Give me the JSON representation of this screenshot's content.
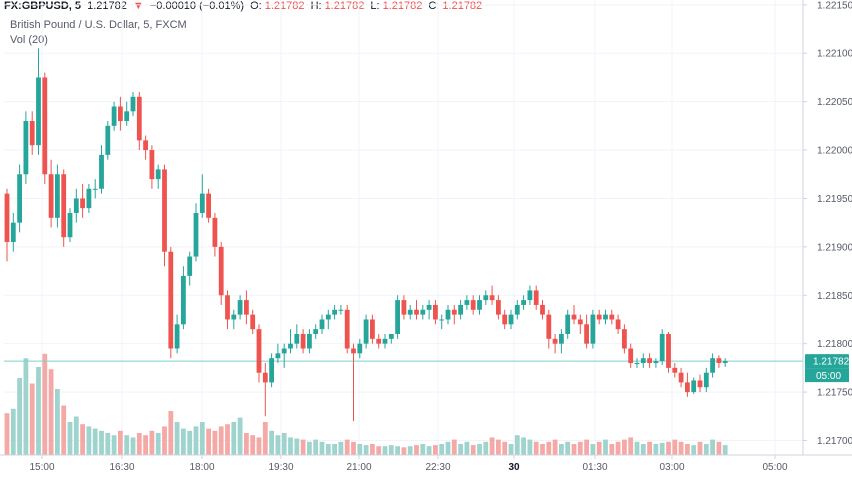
{
  "header": {
    "symbol": "FX:GBPUSD, 5",
    "last": "1.21782",
    "change_arrow": "▼",
    "change": "−0.00010 (−0.01%)",
    "o_label": "O:",
    "o_val": "1.21782",
    "h_label": "H:",
    "h_val": "1.21782",
    "l_label": "L:",
    "l_val": "1.21782",
    "c_label": "C:",
    "c_val": "1.21782",
    "title": "British Pound / U.S. Dollar, 5, FXCM",
    "volume_label": "Vol (20)"
  },
  "colors": {
    "up": "#26a69a",
    "down": "#ef5350",
    "vol_up": "#9fd4ce",
    "vol_down": "#f5a9a7",
    "grid": "#f0f3fa",
    "price_line": "#7fd1c8",
    "axis_text": "#555a66",
    "price_label_bg": "#26a69a"
  },
  "price_axis": {
    "ticks": [
      "1.22150",
      "1.22100",
      "1.22050",
      "1.22000",
      "1.21950",
      "1.21900",
      "1.21850",
      "1.21800",
      "1.21750",
      "1.21700"
    ],
    "tick_values": [
      1.2215,
      1.221,
      1.2205,
      1.22,
      1.2195,
      1.219,
      1.2185,
      1.218,
      1.2175,
      1.217
    ],
    "current_price_label": "1.21782",
    "current_price": 1.21782,
    "countdown_label": "05:00"
  },
  "time_axis": {
    "labels": [
      "15:00",
      "16:30",
      "18:00",
      "19:30",
      "21:00",
      "22:30",
      "30",
      "01:30",
      "03:00",
      "05:00"
    ],
    "bold_index": 6
  },
  "chart_data": {
    "type": "candlestick",
    "interval": "5 minutes",
    "ylim": [
      1.21685,
      1.22155
    ],
    "series_order": "chronological, first candle at ~14:35",
    "candles": [
      [
        1.21955,
        1.2196,
        1.21885,
        1.21905
      ],
      [
        1.21905,
        1.21935,
        1.21895,
        1.21925
      ],
      [
        1.21925,
        1.21985,
        1.21915,
        1.21975
      ],
      [
        1.21975,
        1.2204,
        1.21965,
        1.2203
      ],
      [
        1.2203,
        1.2204,
        1.21995,
        1.22005
      ],
      [
        1.22005,
        1.22105,
        1.21995,
        1.22075
      ],
      [
        1.22075,
        1.2208,
        1.21965,
        1.21975
      ],
      [
        1.21975,
        1.2199,
        1.2192,
        1.2193
      ],
      [
        1.2193,
        1.21985,
        1.2192,
        1.21975
      ],
      [
        1.21975,
        1.2198,
        1.219,
        1.2191
      ],
      [
        1.2191,
        1.2194,
        1.21905,
        1.21935
      ],
      [
        1.21935,
        1.2196,
        1.21925,
        1.2195
      ],
      [
        1.2195,
        1.21965,
        1.2193,
        1.2194
      ],
      [
        1.2194,
        1.21965,
        1.21935,
        1.2196
      ],
      [
        1.2196,
        1.2197,
        1.2195,
        1.2196
      ],
      [
        1.2196,
        1.22005,
        1.21955,
        1.21995
      ],
      [
        1.21995,
        1.2203,
        1.2199,
        1.22025
      ],
      [
        1.22025,
        1.2205,
        1.2202,
        1.22045
      ],
      [
        1.22045,
        1.22055,
        1.2202,
        1.2203
      ],
      [
        1.2203,
        1.2205,
        1.22025,
        1.2204
      ],
      [
        1.2204,
        1.2206,
        1.22035,
        1.22055
      ],
      [
        1.22055,
        1.2206,
        1.22,
        1.2201
      ],
      [
        1.2201,
        1.22015,
        1.2199,
        1.22
      ],
      [
        1.22,
        1.22005,
        1.2196,
        1.2197
      ],
      [
        1.2197,
        1.21985,
        1.2196,
        1.2198
      ],
      [
        1.2198,
        1.21985,
        1.2188,
        1.21895
      ],
      [
        1.21895,
        1.219,
        1.21785,
        1.21795
      ],
      [
        1.21795,
        1.2183,
        1.2179,
        1.2182
      ],
      [
        1.2182,
        1.2188,
        1.21815,
        1.2187
      ],
      [
        1.2187,
        1.21895,
        1.2186,
        1.2189
      ],
      [
        1.2189,
        1.21945,
        1.21885,
        1.21935
      ],
      [
        1.21935,
        1.21975,
        1.2193,
        1.21955
      ],
      [
        1.21955,
        1.2196,
        1.21925,
        1.2193
      ],
      [
        1.2193,
        1.21935,
        1.2189,
        1.219
      ],
      [
        1.219,
        1.21905,
        1.2184,
        1.2185
      ],
      [
        1.2185,
        1.21855,
        1.21815,
        1.21825
      ],
      [
        1.21825,
        1.21835,
        1.21815,
        1.2183
      ],
      [
        1.2183,
        1.2185,
        1.21825,
        1.21845
      ],
      [
        1.21845,
        1.21855,
        1.2182,
        1.2183
      ],
      [
        1.2183,
        1.21835,
        1.2181,
        1.21815
      ],
      [
        1.21815,
        1.2182,
        1.2176,
        1.2177
      ],
      [
        1.2177,
        1.2178,
        1.21725,
        1.2176
      ],
      [
        1.2176,
        1.2179,
        1.21755,
        1.21785
      ],
      [
        1.21785,
        1.218,
        1.2178,
        1.2179
      ],
      [
        1.2179,
        1.218,
        1.21775,
        1.21795
      ],
      [
        1.21795,
        1.21815,
        1.2179,
        1.218
      ],
      [
        1.218,
        1.2182,
        1.21795,
        1.2181
      ],
      [
        1.2181,
        1.21815,
        1.2179,
        1.21795
      ],
      [
        1.21795,
        1.21815,
        1.2179,
        1.2181
      ],
      [
        1.2181,
        1.2182,
        1.21805,
        1.21815
      ],
      [
        1.21815,
        1.2183,
        1.2181,
        1.21825
      ],
      [
        1.21825,
        1.21835,
        1.21815,
        1.2183
      ],
      [
        1.2183,
        1.2184,
        1.21825,
        1.21835
      ],
      [
        1.21835,
        1.2184,
        1.2183,
        1.21835
      ],
      [
        1.21835,
        1.2184,
        1.2179,
        1.21795
      ],
      [
        1.21795,
        1.218,
        1.2172,
        1.2179
      ],
      [
        1.2179,
        1.21805,
        1.21785,
        1.218
      ],
      [
        1.218,
        1.2183,
        1.21795,
        1.21825
      ],
      [
        1.21825,
        1.2183,
        1.218,
        1.21805
      ],
      [
        1.21805,
        1.2181,
        1.21795,
        1.218
      ],
      [
        1.218,
        1.2181,
        1.21795,
        1.21805
      ],
      [
        1.21805,
        1.2181,
        1.218,
        1.2181
      ],
      [
        1.2181,
        1.2185,
        1.21805,
        1.21845
      ],
      [
        1.21845,
        1.2185,
        1.21825,
        1.2183
      ],
      [
        1.2183,
        1.2184,
        1.21825,
        1.21835
      ],
      [
        1.21835,
        1.21845,
        1.21825,
        1.2183
      ],
      [
        1.2183,
        1.2184,
        1.21825,
        1.21835
      ],
      [
        1.21835,
        1.21845,
        1.21825,
        1.2184
      ],
      [
        1.2184,
        1.21845,
        1.2182,
        1.21825
      ],
      [
        1.21825,
        1.2183,
        1.21815,
        1.21825
      ],
      [
        1.21825,
        1.2184,
        1.2182,
        1.21835
      ],
      [
        1.21835,
        1.2184,
        1.2182,
        1.2183
      ],
      [
        1.2183,
        1.21845,
        1.21825,
        1.2184
      ],
      [
        1.2184,
        1.2185,
        1.21835,
        1.21845
      ],
      [
        1.21845,
        1.2185,
        1.2183,
        1.21835
      ],
      [
        1.21835,
        1.2185,
        1.2183,
        1.21845
      ],
      [
        1.21845,
        1.21855,
        1.2184,
        1.2185
      ],
      [
        1.2185,
        1.2186,
        1.2184,
        1.21845
      ],
      [
        1.21845,
        1.2185,
        1.21825,
        1.2183
      ],
      [
        1.2183,
        1.21835,
        1.21815,
        1.2182
      ],
      [
        1.2182,
        1.21835,
        1.21815,
        1.2183
      ],
      [
        1.2183,
        1.21845,
        1.21825,
        1.2184
      ],
      [
        1.2184,
        1.2185,
        1.21835,
        1.21845
      ],
      [
        1.21845,
        1.2186,
        1.2184,
        1.21855
      ],
      [
        1.21855,
        1.2186,
        1.21835,
        1.2184
      ],
      [
        1.2184,
        1.21845,
        1.21825,
        1.2183
      ],
      [
        1.2183,
        1.21835,
        1.21795,
        1.21805
      ],
      [
        1.21805,
        1.2181,
        1.2179,
        1.218
      ],
      [
        1.218,
        1.21815,
        1.2179,
        1.2181
      ],
      [
        1.2181,
        1.21835,
        1.21805,
        1.2183
      ],
      [
        1.2183,
        1.2184,
        1.2182,
        1.21825
      ],
      [
        1.21825,
        1.2183,
        1.2181,
        1.2182
      ],
      [
        1.2182,
        1.2183,
        1.21795,
        1.218
      ],
      [
        1.218,
        1.21835,
        1.21795,
        1.2183
      ],
      [
        1.2183,
        1.21835,
        1.2182,
        1.21825
      ],
      [
        1.21825,
        1.21835,
        1.2182,
        1.2183
      ],
      [
        1.2183,
        1.21835,
        1.2182,
        1.21825
      ],
      [
        1.21825,
        1.2183,
        1.2181,
        1.21815
      ],
      [
        1.21815,
        1.2182,
        1.2179,
        1.21795
      ],
      [
        1.21795,
        1.218,
        1.21775,
        1.2178
      ],
      [
        1.2178,
        1.21785,
        1.21775,
        1.2178
      ],
      [
        1.2178,
        1.2179,
        1.21775,
        1.21785
      ],
      [
        1.21785,
        1.2179,
        1.21775,
        1.2178
      ],
      [
        1.2178,
        1.21785,
        1.21775,
        1.21782
      ],
      [
        1.21782,
        1.21815,
        1.21778,
        1.2181
      ],
      [
        1.2181,
        1.21812,
        1.2177,
        1.21775
      ],
      [
        1.21775,
        1.2178,
        1.21765,
        1.2177
      ],
      [
        1.2177,
        1.21775,
        1.21755,
        1.2176
      ],
      [
        1.2176,
        1.2177,
        1.21745,
        1.2175
      ],
      [
        1.2175,
        1.21765,
        1.21748,
        1.21762
      ],
      [
        1.21762,
        1.21768,
        1.2175,
        1.21755
      ],
      [
        1.21755,
        1.21775,
        1.2175,
        1.2177
      ],
      [
        1.2177,
        1.2179,
        1.21765,
        1.21785
      ],
      [
        1.21785,
        1.21788,
        1.21775,
        1.2178
      ],
      [
        1.2178,
        1.21785,
        1.21776,
        1.21782
      ]
    ],
    "volumes": [
      38,
      42,
      70,
      88,
      65,
      80,
      92,
      78,
      60,
      45,
      30,
      35,
      28,
      26,
      24,
      22,
      20,
      18,
      22,
      18,
      16,
      20,
      18,
      22,
      20,
      26,
      40,
      30,
      24,
      22,
      26,
      30,
      24,
      22,
      26,
      28,
      30,
      34,
      20,
      18,
      16,
      30,
      22,
      18,
      20,
      16,
      15,
      14,
      12,
      14,
      12,
      10,
      10,
      12,
      14,
      12,
      10,
      9,
      10,
      8,
      8,
      9,
      8,
      7,
      8,
      9,
      10,
      8,
      9,
      10,
      12,
      14,
      10,
      12,
      9,
      10,
      12,
      16,
      14,
      12,
      10,
      18,
      16,
      14,
      12,
      10,
      12,
      14,
      10,
      12,
      10,
      12,
      14,
      10,
      12,
      14,
      10,
      12,
      14,
      16,
      12,
      10,
      12,
      10,
      11,
      12,
      14,
      12,
      10,
      9,
      12,
      10,
      14,
      12,
      9,
      10
    ]
  }
}
